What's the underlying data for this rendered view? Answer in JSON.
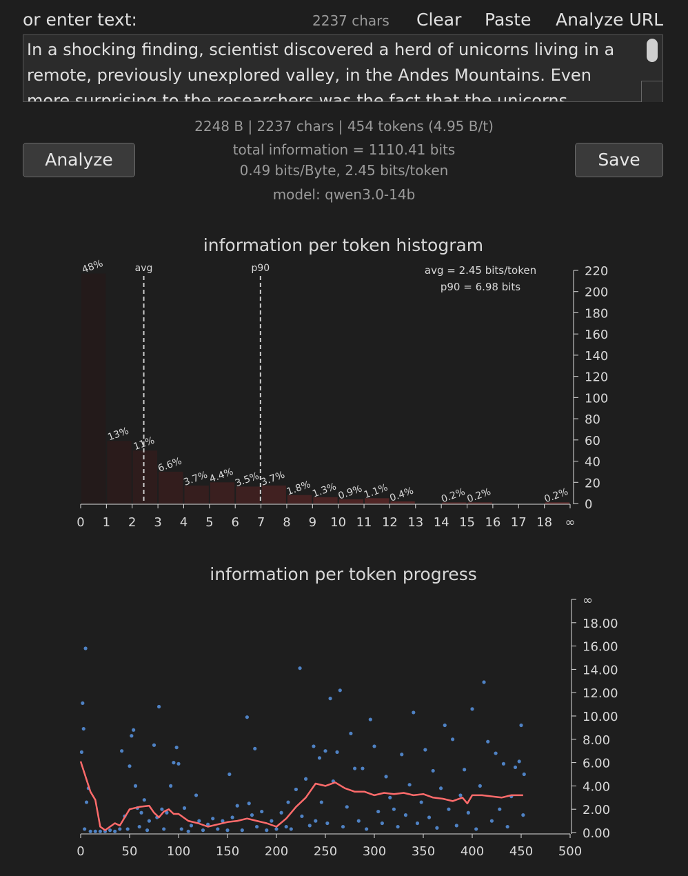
{
  "header": {
    "label": "or enter text:",
    "char_count": "2237 chars",
    "buttons": [
      "Clear",
      "Paste",
      "Analyze URL"
    ]
  },
  "input_text": "In a shocking finding, scientist discovered a herd of unicorns living in a remote, previously unexplored valley, in the Andes Mountains. Even more surprising to the researchers was the fact that the unicorns",
  "stats": {
    "sizes": "2248 B | 2237 chars | 454 tokens (4.95 B/t)",
    "total": "total information = 1110.41 bits",
    "rates": "0.49 bits/Byte, 2.45 bits/token",
    "model": "model: qwen3.0-14b"
  },
  "actions": {
    "analyze": "Analyze",
    "save": "Save"
  },
  "chart_data": [
    {
      "type": "histogram",
      "title": "information per token histogram",
      "bins": [
        0,
        1,
        2,
        3,
        4,
        5,
        6,
        7,
        8,
        9,
        10,
        11,
        12,
        13,
        14,
        15,
        16,
        17,
        18,
        19
      ],
      "values": [
        217,
        59,
        50,
        30,
        17,
        20,
        16,
        17,
        8,
        6,
        4,
        5,
        2,
        0,
        1,
        1,
        0,
        0,
        1
      ],
      "value_labels": [
        "48%",
        "13%",
        "11%",
        "6.6%",
        "3.7%",
        "4.4%",
        "3.5%",
        "3.7%",
        "1.8%",
        "1.3%",
        "0.9%",
        "1.1%",
        "0.4%",
        null,
        "0.2%",
        "0.2%",
        null,
        null,
        "0.2%"
      ],
      "colors": [
        "#231a1a",
        "#2a1b1b",
        "#2e1c1c",
        "#331d1d",
        "#361e1e",
        "#3a1f1f",
        "#3d2020",
        "#412121",
        "#452222",
        "#492323",
        "#4d2424",
        "#512525",
        "#552626",
        "#592727",
        "#5d2828",
        "#612929",
        "#652a2a",
        "#692b2b",
        "#6d2c2c"
      ],
      "xlim": [
        0,
        19
      ],
      "xticks": [
        0,
        1,
        2,
        3,
        4,
        5,
        6,
        7,
        8,
        9,
        10,
        11,
        12,
        13,
        14,
        15,
        16,
        17,
        18,
        {
          "value": 19,
          "label": "∞"
        }
      ],
      "ylim": [
        0,
        220
      ],
      "yticks": [
        0,
        20,
        40,
        60,
        80,
        100,
        120,
        140,
        160,
        180,
        200,
        220
      ],
      "markers": [
        {
          "label": "avg",
          "value": 2.45
        },
        {
          "label": "p90",
          "value": 6.98
        }
      ],
      "annotations": [
        "avg = 2.45 bits/token",
        "p90 = 6.98 bits"
      ]
    },
    {
      "type": "scatter",
      "title": "information per token progress",
      "xlim": [
        0,
        500
      ],
      "xticks": [
        0,
        50,
        100,
        150,
        200,
        250,
        300,
        350,
        400,
        450,
        500
      ],
      "ylim": [
        0,
        20
      ],
      "yticks": [
        {
          "value": 0,
          "label": "0.00"
        },
        {
          "value": 2,
          "label": "2.00"
        },
        {
          "value": 4,
          "label": "4.00"
        },
        {
          "value": 6,
          "label": "6.00"
        },
        {
          "value": 8,
          "label": "8.00"
        },
        {
          "value": 10,
          "label": "10.00"
        },
        {
          "value": 12,
          "label": "12.00"
        },
        {
          "value": 14,
          "label": "14.00"
        },
        {
          "value": 16,
          "label": "16.00"
        },
        {
          "value": 18,
          "label": "18.00"
        },
        {
          "value": 20,
          "label": "∞"
        }
      ],
      "series": [
        {
          "style": "dots",
          "color": "#4f82c4",
          "x": [
            2,
            3,
            1,
            5,
            8,
            6,
            4,
            10,
            15,
            20,
            25,
            30,
            35,
            40,
            42,
            45,
            48,
            50,
            52,
            54,
            56,
            58,
            60,
            62,
            65,
            68,
            70,
            75,
            78,
            80,
            83,
            85,
            88,
            92,
            95,
            98,
            100,
            103,
            106,
            110,
            113,
            118,
            121,
            125,
            130,
            135,
            140,
            145,
            150,
            152,
            155,
            160,
            165,
            170,
            172,
            175,
            178,
            180,
            185,
            190,
            195,
            200,
            205,
            210,
            212,
            215,
            220,
            224,
            226,
            230,
            234,
            238,
            240,
            244,
            246,
            250,
            252,
            255,
            258,
            262,
            265,
            268,
            272,
            276,
            280,
            284,
            288,
            292,
            296,
            300,
            304,
            308,
            312,
            316,
            320,
            324,
            328,
            332,
            336,
            340,
            344,
            348,
            352,
            356,
            360,
            364,
            368,
            372,
            376,
            380,
            384,
            388,
            392,
            396,
            400,
            404,
            408,
            412,
            416,
            420,
            424,
            428,
            432,
            436,
            440,
            444,
            448,
            450,
            452,
            453
          ],
          "values": [
            11.1,
            8.9,
            6.9,
            15.8,
            3.8,
            2.6,
            0.3,
            0.1,
            0.1,
            0.1,
            0.1,
            0.2,
            0.1,
            0.3,
            7.0,
            1.4,
            0.3,
            5.7,
            8.3,
            8.8,
            4.0,
            2.1,
            0.5,
            1.7,
            2.8,
            0.2,
            1.0,
            7.5,
            1.3,
            10.8,
            2.0,
            0.3,
            1.7,
            4.0,
            6.0,
            7.3,
            5.9,
            0.3,
            2.1,
            0.1,
            0.6,
            3.2,
            1.0,
            0.2,
            0.7,
            1.2,
            0.3,
            1.0,
            0.2,
            5.0,
            1.3,
            2.3,
            0.2,
            9.9,
            2.5,
            1.5,
            7.2,
            0.5,
            1.8,
            0.2,
            1.0,
            0.3,
            1.7,
            0.5,
            2.6,
            0.3,
            3.7,
            14.1,
            1.4,
            4.6,
            0.6,
            7.4,
            1.0,
            6.4,
            2.6,
            7.0,
            0.8,
            11.5,
            4.4,
            6.9,
            12.2,
            0.5,
            2.2,
            8.5,
            5.5,
            1.0,
            5.5,
            0.3,
            9.7,
            7.4,
            1.8,
            0.8,
            4.8,
            3.0,
            2.0,
            0.5,
            6.7,
            1.5,
            4.1,
            10.3,
            0.8,
            2.6,
            7.1,
            1.3,
            5.3,
            0.4,
            3.8,
            9.2,
            2.0,
            8.0,
            0.6,
            3.2,
            5.4,
            1.7,
            10.6,
            0.3,
            4.0,
            12.9,
            7.8,
            1.0,
            6.8,
            2.0,
            5.9,
            0.5,
            3.1,
            5.6,
            6.1,
            9.2,
            1.5,
            5.0
          ]
        },
        {
          "style": "line",
          "color": "#ff6b6b",
          "x": [
            0,
            5,
            10,
            15,
            20,
            25,
            30,
            35,
            40,
            45,
            50,
            60,
            70,
            75,
            80,
            85,
            90,
            95,
            100,
            110,
            120,
            130,
            140,
            150,
            160,
            170,
            180,
            190,
            200,
            210,
            220,
            230,
            240,
            250,
            260,
            270,
            280,
            290,
            300,
            310,
            320,
            330,
            340,
            350,
            360,
            370,
            380,
            390,
            395,
            400,
            410,
            420,
            430,
            440,
            452
          ],
          "values": [
            6.1,
            4.8,
            3.5,
            2.8,
            0.5,
            0.2,
            0.5,
            0.8,
            0.6,
            1.3,
            2.0,
            2.2,
            2.3,
            1.7,
            1.3,
            1.8,
            2.0,
            1.6,
            1.6,
            1.0,
            0.8,
            0.5,
            0.7,
            0.9,
            1.0,
            1.2,
            1.0,
            0.8,
            0.5,
            1.2,
            2.2,
            3.0,
            4.2,
            4.0,
            4.3,
            3.8,
            3.5,
            3.5,
            3.2,
            3.4,
            3.3,
            3.4,
            3.2,
            3.3,
            3.0,
            2.9,
            2.7,
            3.0,
            2.5,
            3.2,
            3.2,
            3.1,
            3.0,
            3.2,
            3.2
          ]
        }
      ]
    }
  ]
}
